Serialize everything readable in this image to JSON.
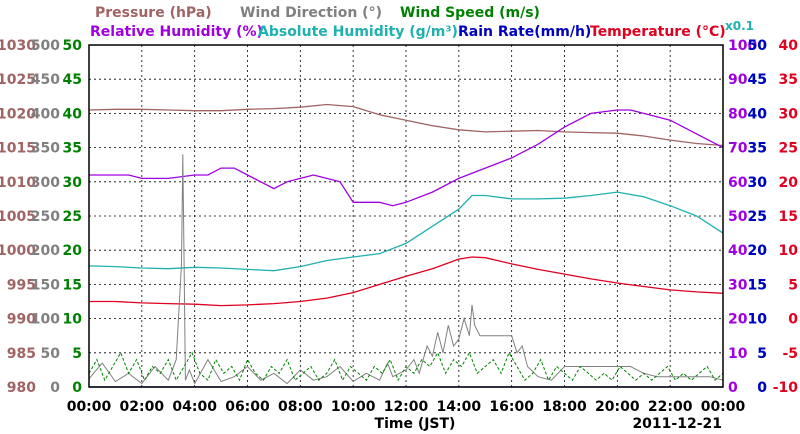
{
  "chart_data": {
    "type": "line",
    "date_label": "2011-12-21",
    "xlabel": "Time (JST)",
    "x_ticks": [
      "00:00",
      "02:00",
      "04:00",
      "06:00",
      "08:00",
      "10:00",
      "12:00",
      "14:00",
      "16:00",
      "18:00",
      "20:00",
      "22:00",
      "00:00"
    ],
    "x_range_hours": [
      0,
      24
    ],
    "legend_top": [
      {
        "id": "pressure",
        "label": "Pressure (hPa)",
        "color": "#a06464"
      },
      {
        "id": "wind_dir",
        "label": "Wind Direction (°)",
        "color": "#808080"
      },
      {
        "id": "wind_speed",
        "label": "Wind Speed (m/s)",
        "color": "#008000"
      }
    ],
    "legend_bottom": [
      {
        "id": "rel_hum",
        "label": "Relative Humidity (%)",
        "color": "#a000e0"
      },
      {
        "id": "abs_hum",
        "label": "Absolute Humidity (g/m³)",
        "color": "#20b0b0"
      },
      {
        "id": "rain",
        "label": "Rain Rate(mm/h)",
        "color": "#0000c0"
      },
      {
        "id": "temp",
        "label": "Temperature (°C)",
        "color": "#e00020"
      }
    ],
    "abs_hum_scale_note": "x0.1",
    "axes": {
      "pressure": {
        "ticks": [
          1030,
          1025,
          1020,
          1015,
          1010,
          1005,
          1000,
          995,
          990,
          985,
          980
        ],
        "range": [
          980,
          1030
        ],
        "color": "#a06464"
      },
      "wind_dir": {
        "ticks": [
          500,
          450,
          400,
          350,
          300,
          250,
          200,
          150,
          100,
          50,
          0
        ],
        "range": [
          0,
          500
        ],
        "color": "#808080"
      },
      "wind_speed": {
        "ticks": [
          50,
          45,
          40,
          35,
          30,
          25,
          20,
          15,
          10,
          5,
          0
        ],
        "range": [
          0,
          50
        ],
        "color": "#008000"
      },
      "rel_hum": {
        "ticks": [
          100,
          90,
          80,
          70,
          60,
          50,
          40,
          30,
          20,
          10,
          0
        ],
        "range": [
          0,
          100
        ],
        "color": "#a000e0"
      },
      "abs_hum": {
        "ticks": [
          50,
          45,
          40,
          35,
          30,
          25,
          20,
          15,
          10,
          5,
          0
        ],
        "range": [
          0,
          50
        ],
        "color": "#20b0b0"
      },
      "rain": {
        "ticks": [
          50,
          45,
          40,
          35,
          30,
          25,
          20,
          15,
          10,
          5,
          0
        ],
        "range": [
          0,
          50
        ],
        "color": "#0000c0"
      },
      "temp": {
        "ticks": [
          40,
          35,
          30,
          25,
          20,
          15,
          10,
          5,
          0,
          -5,
          -10
        ],
        "range": [
          -10,
          40
        ],
        "color": "#e00020"
      }
    },
    "grid": true,
    "series": [
      {
        "id": "pressure",
        "name": "Pressure (hPa)",
        "color": "#a06464",
        "axis": "pressure",
        "x": [
          0,
          1,
          2,
          3,
          4,
          5,
          6,
          7,
          8,
          9,
          10,
          11,
          12,
          13,
          14,
          15,
          16,
          17,
          18,
          19,
          20,
          21,
          22,
          23,
          24
        ],
        "y": [
          1020.5,
          1020.6,
          1020.6,
          1020.5,
          1020.4,
          1020.4,
          1020.6,
          1020.7,
          1020.9,
          1021.3,
          1021.0,
          1019.8,
          1019.0,
          1018.2,
          1017.6,
          1017.3,
          1017.4,
          1017.5,
          1017.3,
          1017.2,
          1017.1,
          1016.7,
          1016.1,
          1015.6,
          1015.3
        ]
      },
      {
        "id": "rel_hum",
        "name": "Relative Humidity (%)",
        "color": "#a000e0",
        "axis": "rel_hum",
        "x": [
          0,
          1.5,
          2,
          3,
          4,
          4.5,
          5,
          5.5,
          6,
          6.5,
          7,
          7.5,
          8,
          8.5,
          9,
          9.5,
          10,
          10.5,
          11,
          11.5,
          12,
          13,
          14,
          15,
          16,
          17,
          18,
          19,
          20,
          20.5,
          21,
          22,
          23,
          24
        ],
        "y": [
          62,
          62,
          61,
          61,
          62,
          62,
          64,
          64,
          62,
          60,
          58,
          60,
          61,
          62,
          61,
          60,
          54,
          54,
          54,
          53,
          54,
          57,
          61,
          64,
          67,
          71,
          76,
          80,
          81,
          81,
          80,
          78,
          74,
          70
        ]
      },
      {
        "id": "abs_hum",
        "name": "Absolute Humidity (g/m³)",
        "color": "#20b0b0",
        "axis": "abs_hum",
        "x": [
          0,
          1,
          2,
          3,
          4,
          5,
          6,
          7,
          8,
          9,
          10,
          11,
          12,
          13,
          14,
          14.5,
          15,
          16,
          17,
          18,
          19,
          20,
          21,
          22,
          23,
          24
        ],
        "y": [
          17.7,
          17.6,
          17.4,
          17.3,
          17.5,
          17.4,
          17.2,
          17.0,
          17.6,
          18.5,
          19.0,
          19.5,
          21.0,
          23.5,
          26.0,
          28.0,
          28.0,
          27.5,
          27.5,
          27.6,
          28.0,
          28.5,
          27.8,
          26.5,
          25.0,
          22.5
        ]
      },
      {
        "id": "temp",
        "name": "Temperature (°C)",
        "color": "#e00020",
        "axis": "temp",
        "x": [
          0,
          1,
          2,
          3,
          4,
          5,
          6,
          7,
          8,
          9,
          10,
          11,
          12,
          13,
          14,
          14.5,
          15,
          16,
          17,
          18,
          19,
          20,
          21,
          22,
          23,
          24
        ],
        "y": [
          2.5,
          2.5,
          2.3,
          2.2,
          2.1,
          1.9,
          2.0,
          2.2,
          2.5,
          3.0,
          3.8,
          5.0,
          6.2,
          7.3,
          8.7,
          9.0,
          8.9,
          8.0,
          7.2,
          6.5,
          5.8,
          5.2,
          4.7,
          4.2,
          3.9,
          3.7
        ]
      },
      {
        "id": "wind_dir",
        "name": "Wind Direction (°)",
        "color": "#808080",
        "axis": "wind_dir",
        "x": [
          0,
          0.5,
          1,
          1.5,
          2,
          2.5,
          3,
          3.3,
          3.5,
          3.55,
          3.6,
          3.65,
          3.8,
          4,
          4.5,
          5,
          5.5,
          6,
          6.5,
          7,
          7.5,
          8,
          8.5,
          9,
          9.5,
          10,
          10.5,
          11,
          11.3,
          11.5,
          12,
          12.3,
          12.5,
          12.8,
          13,
          13.2,
          13.4,
          13.6,
          13.8,
          14,
          14.2,
          14.4,
          14.5,
          14.6,
          14.8,
          15,
          15.5,
          16,
          16.2,
          16.4,
          16.6,
          17,
          17.5,
          18,
          18.5,
          19,
          19.5,
          20,
          20.5,
          21,
          21.5,
          22,
          22.5,
          23,
          23.5,
          24
        ],
        "y": [
          12,
          35,
          8,
          20,
          5,
          30,
          10,
          40,
          180,
          340,
          180,
          10,
          25,
          5,
          40,
          8,
          15,
          30,
          10,
          20,
          5,
          25,
          10,
          15,
          30,
          8,
          20,
          10,
          35,
          15,
          25,
          40,
          20,
          60,
          45,
          80,
          50,
          90,
          60,
          70,
          100,
          75,
          120,
          90,
          75,
          75,
          75,
          75,
          50,
          60,
          30,
          15,
          10,
          30,
          30,
          30,
          30,
          30,
          30,
          20,
          15,
          15,
          15,
          15,
          15,
          10
        ]
      },
      {
        "id": "wind_speed",
        "name": "Wind Speed (m/s)",
        "color": "#008000",
        "axis": "wind_speed",
        "x": [
          0,
          0.3,
          0.6,
          0.9,
          1.2,
          1.5,
          1.8,
          2.1,
          2.4,
          2.7,
          3,
          3.3,
          3.6,
          3.9,
          4.2,
          4.5,
          4.8,
          5.1,
          5.4,
          5.7,
          6,
          6.3,
          6.6,
          6.9,
          7.2,
          7.5,
          7.8,
          8.1,
          8.4,
          8.7,
          9,
          9.3,
          9.6,
          9.9,
          10.2,
          10.5,
          10.8,
          11.1,
          11.4,
          11.7,
          12,
          12.3,
          12.6,
          12.9,
          13.2,
          13.5,
          13.8,
          14.1,
          14.4,
          14.7,
          15,
          15.3,
          15.6,
          15.9,
          16.2,
          16.5,
          16.8,
          17.1,
          17.4,
          17.7,
          18,
          18.3,
          18.6,
          18.9,
          19.2,
          19.5,
          19.8,
          20.1,
          20.4,
          20.7,
          21,
          21.3,
          21.6,
          21.9,
          22.2,
          22.5,
          22.8,
          23.1,
          23.4,
          23.7,
          24
        ],
        "y": [
          2,
          4,
          1,
          3,
          5,
          2,
          4,
          1,
          3,
          2,
          4,
          1,
          3,
          5,
          2,
          1,
          4,
          2,
          3,
          1,
          4,
          2,
          1,
          3,
          2,
          4,
          1,
          2,
          3,
          1,
          2,
          4,
          1,
          3,
          2,
          1,
          3,
          2,
          4,
          1,
          3,
          2,
          4,
          3,
          5,
          2,
          4,
          3,
          5,
          2,
          3,
          4,
          2,
          5,
          3,
          1,
          2,
          4,
          1,
          3,
          2,
          1,
          3,
          2,
          1,
          2,
          1,
          3,
          2,
          1,
          2,
          1,
          2,
          3,
          1,
          2,
          1,
          2,
          3,
          1,
          2
        ]
      },
      {
        "id": "rain",
        "name": "Rain Rate(mm/h)",
        "color": "#0000c0",
        "axis": "rain",
        "x": [
          0,
          24
        ],
        "y": [
          0,
          0
        ]
      }
    ]
  }
}
